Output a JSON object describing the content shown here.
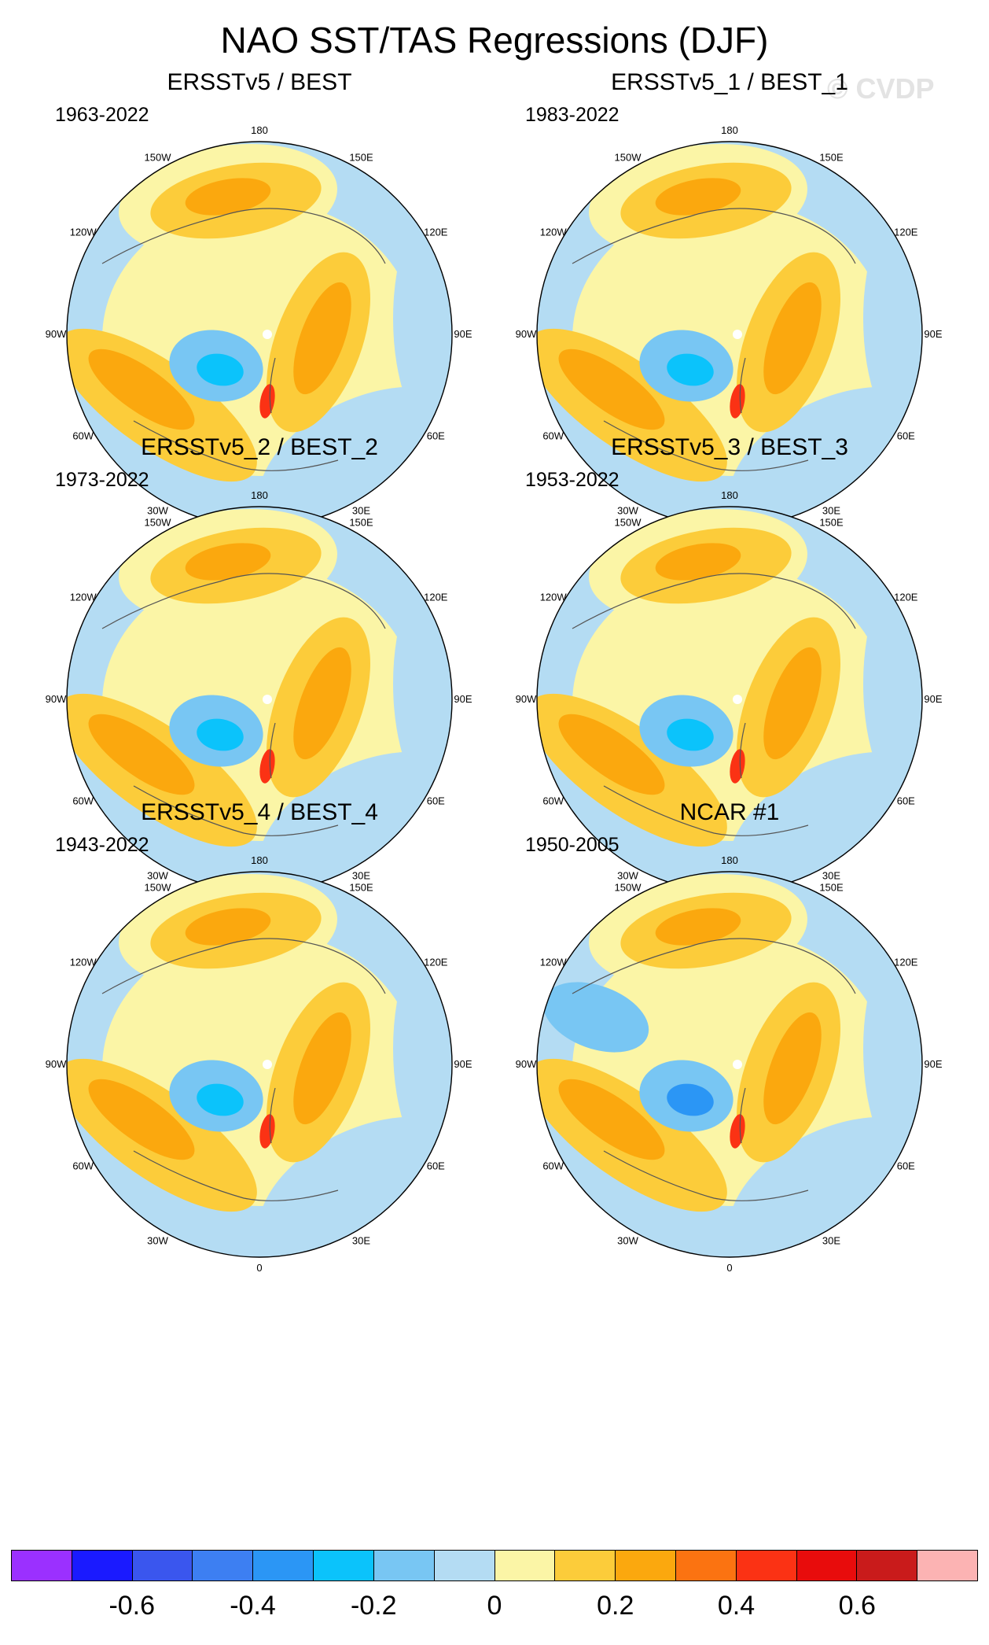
{
  "title": "NAO SST/TAS Regressions (DJF)",
  "watermark": "© CVDP",
  "longitude_labels": {
    "top": "180",
    "bottom": "0",
    "upper_left": "150W",
    "upper_right": "150E",
    "left_upper": "120W",
    "right_upper": "120E",
    "left": "90W",
    "right": "90E",
    "left_lower": "60W",
    "right_lower": "60E",
    "lower_left": "30W",
    "lower_right": "30E"
  },
  "panels": [
    {
      "title": "ERSSTv5 / BEST",
      "years": "1963-2022"
    },
    {
      "title": "ERSSTv5_1 / BEST_1",
      "years": "1983-2022"
    },
    {
      "title": "ERSSTv5_2 / BEST_2",
      "years": "1973-2022"
    },
    {
      "title": "ERSSTv5_3 / BEST_3",
      "years": "1953-2022"
    },
    {
      "title": "ERSSTv5_4 / BEST_4",
      "years": "1943-2022"
    },
    {
      "title": "NCAR #1",
      "years": "1950-2005"
    }
  ],
  "colorbar": {
    "colors": [
      "#9b30ff",
      "#1a1aff",
      "#3a56ee",
      "#3d7ff2",
      "#2b96f5",
      "#0bc3fb",
      "#78c6f3",
      "#b4dcf3",
      "#fbf5a6",
      "#fccc3a",
      "#fba80e",
      "#fb7311",
      "#fb3214",
      "#e80c0c",
      "#c91b1b",
      "#fcb3b3"
    ],
    "labels": [
      "-0.6",
      "-0.4",
      "-0.2",
      "0",
      "0.2",
      "0.4",
      "0.6"
    ]
  }
}
